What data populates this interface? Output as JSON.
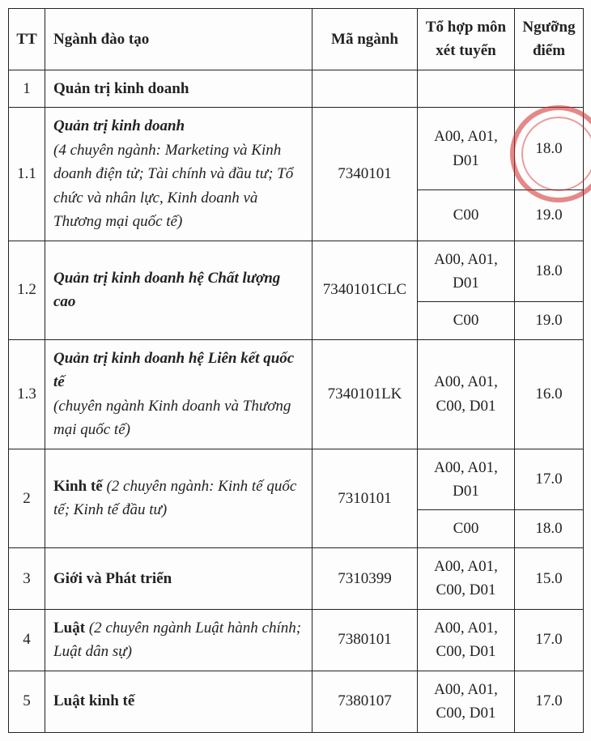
{
  "headers": {
    "tt": "TT",
    "nganh": "Ngành đào tạo",
    "ma": "Mã ngành",
    "thop": "Tổ hợp môn xét tuyển",
    "diem": "Ngưỡng điểm"
  },
  "rows": [
    {
      "tt": "1",
      "nganh_bold": "Quản trị kinh doanh",
      "ma": "",
      "thop": "",
      "diem": "",
      "single": true
    },
    {
      "tt": "1.1",
      "nganh_bold_italic": "Quản trị kinh doanh",
      "nganh_italic": "(4 chuyên ngành: Marketing và Kinh doanh điện tử; Tài chính và đầu tư; Tổ chức và nhân lực, Kinh doanh và Thương mại quốc tế)",
      "ma": "7340101",
      "sub": [
        {
          "thop": "A00, A01, D01",
          "diem": "18.0"
        },
        {
          "thop": "C00",
          "diem": "19.0"
        }
      ]
    },
    {
      "tt": "1.2",
      "nganh_bold_italic": "Quản trị kinh doanh hệ Chất lượng cao",
      "ma": "7340101CLC",
      "sub": [
        {
          "thop": "A00, A01, D01",
          "diem": "18.0"
        },
        {
          "thop": "C00",
          "diem": "19.0"
        }
      ]
    },
    {
      "tt": "1.3",
      "nganh_bold_italic": "Quản trị kinh doanh hệ Liên kết quốc tế",
      "nganh_italic": "(chuyên ngành Kinh doanh và Thương mại quốc tế)",
      "ma": "7340101LK",
      "thop": "A00, A01, C00, D01",
      "diem": "16.0",
      "single": true
    },
    {
      "tt": "2",
      "nganh_bold": "Kinh tế",
      "nganh_italic_inline": " (2 chuyên ngành: Kinh tế quốc tế; Kinh tế đầu tư)",
      "ma": "7310101",
      "sub": [
        {
          "thop": "A00, A01, D01",
          "diem": "17.0"
        },
        {
          "thop": "C00",
          "diem": "18.0"
        }
      ]
    },
    {
      "tt": "3",
      "nganh_bold": "Giới và Phát triển",
      "ma": "7310399",
      "thop": "A00, A01, C00, D01",
      "diem": "15.0",
      "single": true
    },
    {
      "tt": "4",
      "nganh_bold": "Luật",
      "nganh_italic_inline": " (2 chuyên ngành Luật hành chính; Luật dân sự)",
      "ma": "7380101",
      "thop": "A00, A01, C00, D01",
      "diem": "17.0",
      "single": true
    },
    {
      "tt": "5",
      "nganh_bold": "Luật kinh tế",
      "ma": "7380107",
      "thop": "A00, A01, C00, D01",
      "diem": "17.0",
      "single": true
    }
  ]
}
